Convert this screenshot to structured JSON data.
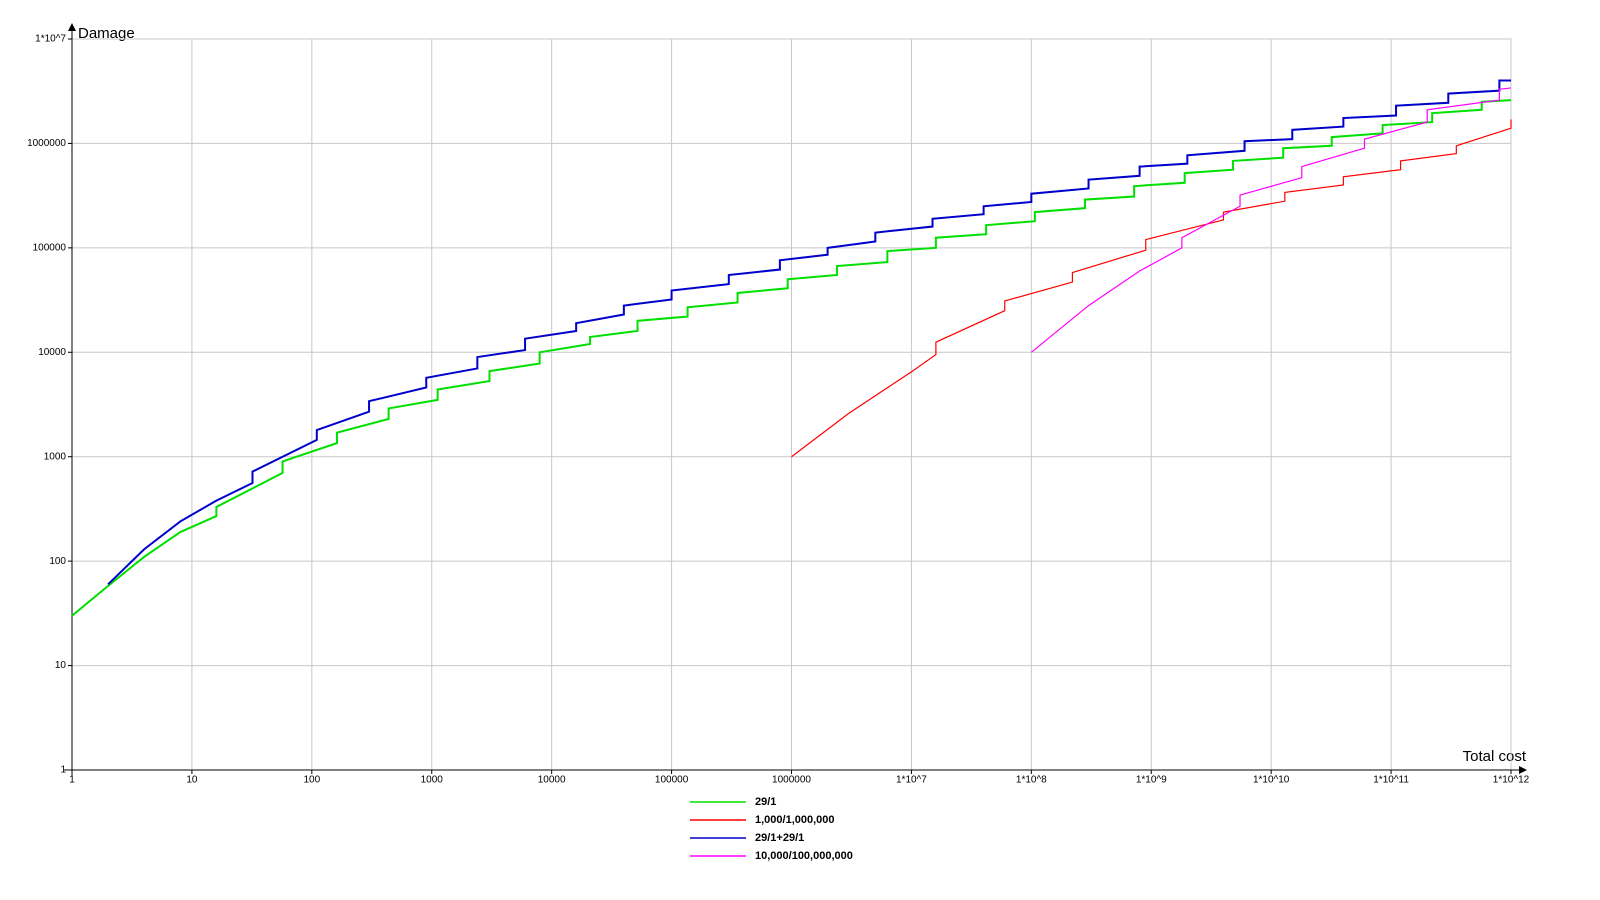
{
  "chart_data": {
    "type": "line",
    "x_label": "Total cost",
    "y_label": "Damage",
    "log_x": true,
    "log_y": true,
    "grid": true,
    "legend": "bottom",
    "xlim": [
      1,
      1000000000000.0
    ],
    "ylim": [
      1,
      10000000.0
    ],
    "xticks": [
      1,
      10,
      100,
      1000,
      10000,
      100000,
      1000000,
      {
        "value": 10000000.0,
        "label": "1*10^7"
      },
      {
        "value": 100000000.0,
        "label": "1*10^8"
      },
      {
        "value": 1000000000.0,
        "label": "1*10^9"
      },
      {
        "value": 10000000000.0,
        "label": "1*10^10"
      },
      {
        "value": 100000000000.0,
        "label": "1*10^11"
      },
      {
        "value": 1000000000000.0,
        "label": "1*10^12"
      }
    ],
    "yticks": [
      1,
      10,
      100,
      1000,
      10000,
      100000,
      1000000,
      {
        "value": 10000000.0,
        "label": "1*10^7"
      }
    ],
    "series": [
      {
        "name": "29/1",
        "color": "#00e000",
        "x": [
          1,
          2,
          4,
          8,
          16,
          16,
          57,
          57,
          162,
          162,
          437,
          437,
          1120,
          1120,
          3030,
          3030,
          7940,
          7940,
          20900,
          20900,
          52000,
          52000,
          136000,
          136000,
          355000,
          355000,
          929000,
          929000,
          2400000.0,
          2400000.0,
          6300000.0,
          6300000.0,
          16000000.0,
          16000000.0,
          42000000.0,
          42000000.0,
          107000000.0,
          107000000.0,
          280000000.0,
          280000000.0,
          720000000.0,
          720000000.0,
          1900000000.0,
          1900000000.0,
          4800000000.0,
          4800000000.0,
          12600000000.0,
          12600000000.0,
          32000000000.0,
          32000000000.0,
          85000000000.0,
          85000000000.0,
          220000000000.0,
          220000000000.0,
          570000000000.0,
          570000000000.0,
          1000000000000.0
        ],
        "values": [
          30,
          58,
          110,
          190,
          270,
          330,
          700,
          900,
          1350,
          1700,
          2300,
          2900,
          3500,
          4400,
          5300,
          6600,
          7800,
          10000,
          12000,
          14000,
          16000,
          20000,
          22000,
          27000,
          30000,
          37000,
          41000,
          50000,
          55000,
          67000,
          73000,
          93000,
          100000,
          125000,
          135000,
          165000,
          180000,
          220000,
          240000,
          290000,
          310000,
          390000,
          420000,
          520000,
          560000,
          680000,
          730000,
          900000,
          950000,
          1150000,
          1250000,
          1500000,
          1600000,
          1950000,
          2100000,
          2500000,
          2600000
        ]
      },
      {
        "name": "1,000/1,000,000",
        "color": "#ff0000",
        "x": [
          1000000,
          3000000,
          10000000.0,
          16000000.0,
          16000000.0,
          60000000.0,
          60000000.0,
          220000000.0,
          220000000.0,
          900000000.0,
          900000000.0,
          4000000000.0,
          4000000000.0,
          13000000000.0,
          13000000000.0,
          40000000000.0,
          40000000000.0,
          120000000000.0,
          120000000000.0,
          350000000000.0,
          350000000000.0,
          1000000000000.0,
          1000000000000.0
        ],
        "values": [
          1000,
          2600,
          6500,
          9500,
          12500,
          25000,
          31000,
          47000,
          58000,
          95000,
          120000,
          185000,
          220000,
          280000,
          340000,
          400000,
          480000,
          560000,
          680000,
          800000,
          950000,
          1400000,
          1700000
        ]
      },
      {
        "name": "29/1+29/1",
        "color": "#0000cc",
        "x": [
          2,
          4,
          8,
          16,
          32,
          32,
          110,
          110,
          300,
          300,
          900,
          900,
          2400,
          2400,
          6000,
          6000,
          16000,
          16000,
          40000,
          40000,
          100000,
          100000,
          300000,
          300000,
          800000,
          800000,
          2000000.0,
          2000000.0,
          5000000.0,
          5000000.0,
          15000000.0,
          15000000.0,
          40000000.0,
          40000000.0,
          100000000.0,
          100000000.0,
          300000000.0,
          300000000.0,
          800000000.0,
          800000000.0,
          2000000000.0,
          2000000000.0,
          6000000000.0,
          6000000000.0,
          15000000000.0,
          15000000000.0,
          40000000000.0,
          40000000000.0,
          110000000000.0,
          110000000000.0,
          300000000000.0,
          300000000000.0,
          800000000000.0,
          800000000000.0,
          1000000000000.0
        ],
        "values": [
          60,
          130,
          240,
          380,
          560,
          720,
          1450,
          1800,
          2700,
          3400,
          4600,
          5700,
          7000,
          9000,
          10500,
          13500,
          16000,
          19000,
          23000,
          28000,
          32000,
          39000,
          45000,
          55000,
          62000,
          76000,
          86000,
          100000,
          115000,
          140000,
          160000,
          190000,
          210000,
          250000,
          275000,
          330000,
          370000,
          450000,
          490000,
          600000,
          640000,
          770000,
          850000,
          1050000,
          1100000,
          1350000,
          1450000,
          1750000,
          1850000,
          2300000,
          2450000,
          3000000,
          3200000,
          4000000,
          4000000
        ]
      },
      {
        "name": "10,000/100,000,000",
        "color": "#ff00ff",
        "x": [
          100000000.0,
          300000000.0,
          800000000.0,
          1800000000.0,
          1800000000.0,
          5500000000.0,
          5500000000.0,
          18000000000.0,
          18000000000.0,
          60000000000.0,
          60000000000.0,
          200000000000.0,
          200000000000.0,
          800000000000.0,
          800000000000.0,
          1000000000000.0
        ],
        "values": [
          10000,
          28000,
          60000,
          100000,
          125000,
          250000,
          320000,
          470000,
          600000,
          900000,
          1100000,
          1600000,
          2100000,
          2600000,
          3300000,
          3400000
        ]
      }
    ]
  }
}
